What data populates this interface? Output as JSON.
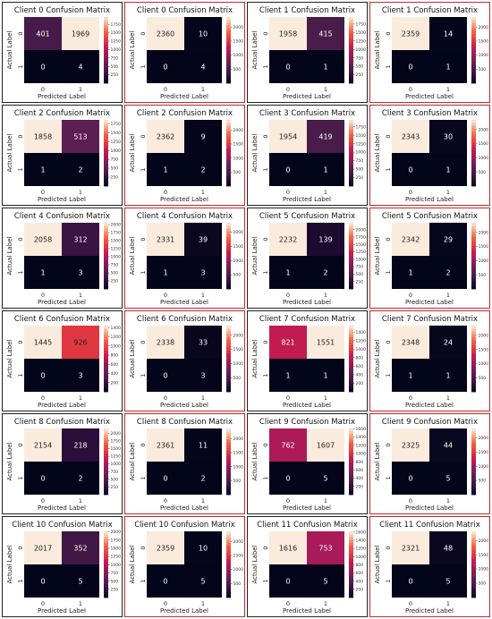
{
  "colors": {
    "cmap": [
      "#03051a",
      "#2f0f3d",
      "#4c1d4b",
      "#701f57",
      "#a11a5b",
      "#cb1b4f",
      "#e83f3f",
      "#f06043",
      "#f6a47c",
      "#faebdd"
    ],
    "frame_blue": "#1a4a8a",
    "frame_red": "#c22a2a",
    "frame_dark": "#222222"
  },
  "chart_data": [
    {
      "type": "heatmap",
      "title": "Client 0 Confusion Matrix",
      "xlabel": "Predicted Label",
      "ylabel": "Actual Label",
      "categories_x": [
        "0",
        "1"
      ],
      "categories_y": [
        "0",
        "1"
      ],
      "values": [
        [
          401,
          1969
        ],
        [
          0,
          4
        ]
      ],
      "colorbar": {
        "vmax": 1969,
        "ticks": [
          250,
          500,
          750,
          1000,
          1250,
          1500,
          1750
        ]
      }
    },
    {
      "type": "heatmap",
      "title": "Client 0 Confusion Matrix",
      "xlabel": "Predicted Label",
      "ylabel": "Actual Label",
      "categories_x": [
        "0",
        "1"
      ],
      "categories_y": [
        "0",
        "1"
      ],
      "values": [
        [
          2360,
          10
        ],
        [
          0,
          4
        ]
      ],
      "colorbar": {
        "vmax": 2360,
        "ticks": [
          500,
          1000,
          1500,
          2000
        ]
      }
    },
    {
      "type": "heatmap",
      "title": "Client 1 Confusion Matrix",
      "xlabel": "Predicted Label",
      "ylabel": "Actual Label",
      "categories_x": [
        "0",
        "1"
      ],
      "categories_y": [
        "0",
        "1"
      ],
      "values": [
        [
          1958,
          415
        ],
        [
          0,
          1
        ]
      ],
      "colorbar": {
        "vmax": 1958,
        "ticks": [
          250,
          500,
          750,
          1000,
          1250,
          1500,
          1750
        ]
      }
    },
    {
      "type": "heatmap",
      "title": "Client 1 Confusion Matrix",
      "xlabel": "Predicted Label",
      "ylabel": "Actual Label",
      "categories_x": [
        "0",
        "1"
      ],
      "categories_y": [
        "0",
        "1"
      ],
      "values": [
        [
          2359,
          14
        ],
        [
          0,
          1
        ]
      ],
      "colorbar": {
        "vmax": 2359,
        "ticks": [
          500,
          1000,
          1500,
          2000
        ]
      }
    },
    {
      "type": "heatmap",
      "title": "Client 2 Confusion Matrix",
      "xlabel": "Predicted Label",
      "ylabel": "Actual Label",
      "categories_x": [
        "0",
        "1"
      ],
      "categories_y": [
        "0",
        "1"
      ],
      "values": [
        [
          1858,
          513
        ],
        [
          1,
          2
        ]
      ],
      "colorbar": {
        "vmax": 1858,
        "ticks": [
          250,
          500,
          750,
          1000,
          1250,
          1500,
          1750
        ]
      }
    },
    {
      "type": "heatmap",
      "title": "Client 2 Confusion Matrix",
      "xlabel": "Predicted Label",
      "ylabel": "Actual Label",
      "categories_x": [
        "0",
        "1"
      ],
      "categories_y": [
        "0",
        "1"
      ],
      "values": [
        [
          2362,
          9
        ],
        [
          1,
          2
        ]
      ],
      "colorbar": {
        "vmax": 2362,
        "ticks": [
          500,
          1000,
          1500,
          2000
        ]
      }
    },
    {
      "type": "heatmap",
      "title": "Client 3 Confusion Matrix",
      "xlabel": "Predicted Label",
      "ylabel": "Actual Label",
      "categories_x": [
        "0",
        "1"
      ],
      "categories_y": [
        "0",
        "1"
      ],
      "values": [
        [
          1954,
          419
        ],
        [
          0,
          1
        ]
      ],
      "colorbar": {
        "vmax": 1954,
        "ticks": [
          250,
          500,
          750,
          1000,
          1250,
          1500,
          1750
        ]
      }
    },
    {
      "type": "heatmap",
      "title": "Client 3 Confusion Matrix",
      "xlabel": "Predicted Label",
      "ylabel": "Actual Label",
      "categories_x": [
        "0",
        "1"
      ],
      "categories_y": [
        "0",
        "1"
      ],
      "values": [
        [
          2343,
          30
        ],
        [
          0,
          1
        ]
      ],
      "colorbar": {
        "vmax": 2343,
        "ticks": [
          500,
          1000,
          1500,
          2000
        ]
      }
    },
    {
      "type": "heatmap",
      "title": "Client 4 Confusion Matrix",
      "xlabel": "Predicted Label",
      "ylabel": "Actual Label",
      "categories_x": [
        "0",
        "1"
      ],
      "categories_y": [
        "0",
        "1"
      ],
      "values": [
        [
          2058,
          312
        ],
        [
          1,
          3
        ]
      ],
      "colorbar": {
        "vmax": 2058,
        "ticks": [
          250,
          500,
          750,
          1000,
          1250,
          1500,
          1750,
          2000
        ]
      }
    },
    {
      "type": "heatmap",
      "title": "Client 4 Confusion Matrix",
      "xlabel": "Predicted Label",
      "ylabel": "Actual Label",
      "categories_x": [
        "0",
        "1"
      ],
      "categories_y": [
        "0",
        "1"
      ],
      "values": [
        [
          2331,
          39
        ],
        [
          1,
          3
        ]
      ],
      "colorbar": {
        "vmax": 2331,
        "ticks": [
          500,
          1000,
          1500,
          2000
        ]
      }
    },
    {
      "type": "heatmap",
      "title": "Client 5 Confusion Matrix",
      "xlabel": "Predicted Label",
      "ylabel": "Actual Label",
      "categories_x": [
        "0",
        "1"
      ],
      "categories_y": [
        "0",
        "1"
      ],
      "values": [
        [
          2232,
          139
        ],
        [
          1,
          2
        ]
      ],
      "colorbar": {
        "vmax": 2232,
        "ticks": [
          250,
          500,
          750,
          1000,
          1250,
          1500,
          1750,
          2000
        ]
      }
    },
    {
      "type": "heatmap",
      "title": "Client 5 Confusion Matrix",
      "xlabel": "Predicted Label",
      "ylabel": "Actual Label",
      "categories_x": [
        "0",
        "1"
      ],
      "categories_y": [
        "0",
        "1"
      ],
      "values": [
        [
          2342,
          29
        ],
        [
          1,
          2
        ]
      ],
      "colorbar": {
        "vmax": 2342,
        "ticks": [
          500,
          1000,
          1500,
          2000
        ]
      }
    },
    {
      "type": "heatmap",
      "title": "Client 6 Confusion Matrix",
      "xlabel": "Predicted Label",
      "ylabel": "Actual Label",
      "categories_x": [
        "0",
        "1"
      ],
      "categories_y": [
        "0",
        "1"
      ],
      "values": [
        [
          1445,
          926
        ],
        [
          0,
          3
        ]
      ],
      "colorbar": {
        "vmax": 1445,
        "ticks": [
          200,
          400,
          600,
          800,
          1000,
          1200,
          1400
        ]
      }
    },
    {
      "type": "heatmap",
      "title": "Client 6 Confusion Matrix",
      "xlabel": "Predicted Label",
      "ylabel": "Actual Label",
      "categories_x": [
        "0",
        "1"
      ],
      "categories_y": [
        "0",
        "1"
      ],
      "values": [
        [
          2338,
          33
        ],
        [
          0,
          3
        ]
      ],
      "colorbar": {
        "vmax": 2338,
        "ticks": [
          500,
          1000,
          1500,
          2000
        ]
      }
    },
    {
      "type": "heatmap",
      "title": "Client 7 Confusion Matrix",
      "xlabel": "Predicted Label",
      "ylabel": "Actual Label",
      "categories_x": [
        "0",
        "1"
      ],
      "categories_y": [
        "0",
        "1"
      ],
      "values": [
        [
          821,
          1551
        ],
        [
          1,
          1
        ]
      ],
      "colorbar": {
        "vmax": 1551,
        "ticks": [
          200,
          400,
          600,
          800,
          1000,
          1200,
          1400
        ]
      }
    },
    {
      "type": "heatmap",
      "title": "Client 7 Confusion Matrix",
      "xlabel": "Predicted Label",
      "ylabel": "Actual Label",
      "categories_x": [
        "0",
        "1"
      ],
      "categories_y": [
        "0",
        "1"
      ],
      "values": [
        [
          2348,
          24
        ],
        [
          1,
          1
        ]
      ],
      "colorbar": {
        "vmax": 2348,
        "ticks": [
          500,
          1000,
          1500,
          2000
        ]
      }
    },
    {
      "type": "heatmap",
      "title": "Client 8 Confusion Matrix",
      "xlabel": "Predicted Label",
      "ylabel": "Actual Label",
      "categories_x": [
        "0",
        "1"
      ],
      "categories_y": [
        "0",
        "1"
      ],
      "values": [
        [
          2154,
          218
        ],
        [
          0,
          2
        ]
      ],
      "colorbar": {
        "vmax": 2154,
        "ticks": [
          250,
          500,
          750,
          1000,
          1250,
          1500,
          1750,
          2000
        ]
      }
    },
    {
      "type": "heatmap",
      "title": "Client 8 Confusion Matrix",
      "xlabel": "Predicted Label",
      "ylabel": "Actual Label",
      "categories_x": [
        "0",
        "1"
      ],
      "categories_y": [
        "0",
        "1"
      ],
      "values": [
        [
          2361,
          11
        ],
        [
          0,
          2
        ]
      ],
      "colorbar": {
        "vmax": 2361,
        "ticks": [
          500,
          1000,
          1500,
          2000
        ]
      }
    },
    {
      "type": "heatmap",
      "title": "Client 9 Confusion Matrix",
      "xlabel": "Predicted Label",
      "ylabel": "Actual Label",
      "categories_x": [
        "0",
        "1"
      ],
      "categories_y": [
        "0",
        "1"
      ],
      "values": [
        [
          762,
          1607
        ],
        [
          0,
          5
        ]
      ],
      "colorbar": {
        "vmax": 1607,
        "ticks": [
          200,
          400,
          600,
          800,
          1000,
          1200,
          1400,
          1600
        ]
      }
    },
    {
      "type": "heatmap",
      "title": "Client 9 Confusion Matrix",
      "xlabel": "Predicted Label",
      "ylabel": "Actual Label",
      "categories_x": [
        "0",
        "1"
      ],
      "categories_y": [
        "0",
        "1"
      ],
      "values": [
        [
          2325,
          44
        ],
        [
          0,
          5
        ]
      ],
      "colorbar": {
        "vmax": 2325,
        "ticks": [
          500,
          1000,
          1500,
          2000
        ]
      }
    },
    {
      "type": "heatmap",
      "title": "Client 10 Confusion Matrix",
      "xlabel": "Predicted Label",
      "ylabel": "Actual Label",
      "categories_x": [
        "0",
        "1"
      ],
      "categories_y": [
        "0",
        "1"
      ],
      "values": [
        [
          2017,
          352
        ],
        [
          0,
          5
        ]
      ],
      "colorbar": {
        "vmax": 2017,
        "ticks": [
          250,
          500,
          750,
          1000,
          1250,
          1500,
          1750,
          2000
        ]
      }
    },
    {
      "type": "heatmap",
      "title": "Client 10 Confusion Matrix",
      "xlabel": "Predicted Label",
      "ylabel": "Actual Label",
      "categories_x": [
        "0",
        "1"
      ],
      "categories_y": [
        "0",
        "1"
      ],
      "values": [
        [
          2359,
          10
        ],
        [
          0,
          5
        ]
      ],
      "colorbar": {
        "vmax": 2359,
        "ticks": [
          500,
          1000,
          1500,
          2000
        ]
      }
    },
    {
      "type": "heatmap",
      "title": "Client 11 Confusion Matrix",
      "xlabel": "Predicted Label",
      "ylabel": "Actual Label",
      "categories_x": [
        "0",
        "1"
      ],
      "categories_y": [
        "0",
        "1"
      ],
      "values": [
        [
          1616,
          753
        ],
        [
          0,
          5
        ]
      ],
      "colorbar": {
        "vmax": 1616,
        "ticks": [
          200,
          400,
          600,
          800,
          1000,
          1200,
          1400,
          1600
        ]
      }
    },
    {
      "type": "heatmap",
      "title": "Client 11 Confusion Matrix",
      "xlabel": "Predicted Label",
      "ylabel": "Actual Label",
      "categories_x": [
        "0",
        "1"
      ],
      "categories_y": [
        "0",
        "1"
      ],
      "values": [
        [
          2321,
          48
        ],
        [
          0,
          5
        ]
      ],
      "colorbar": {
        "vmax": 2321,
        "ticks": [
          500,
          1000,
          1500,
          2000
        ]
      }
    }
  ]
}
